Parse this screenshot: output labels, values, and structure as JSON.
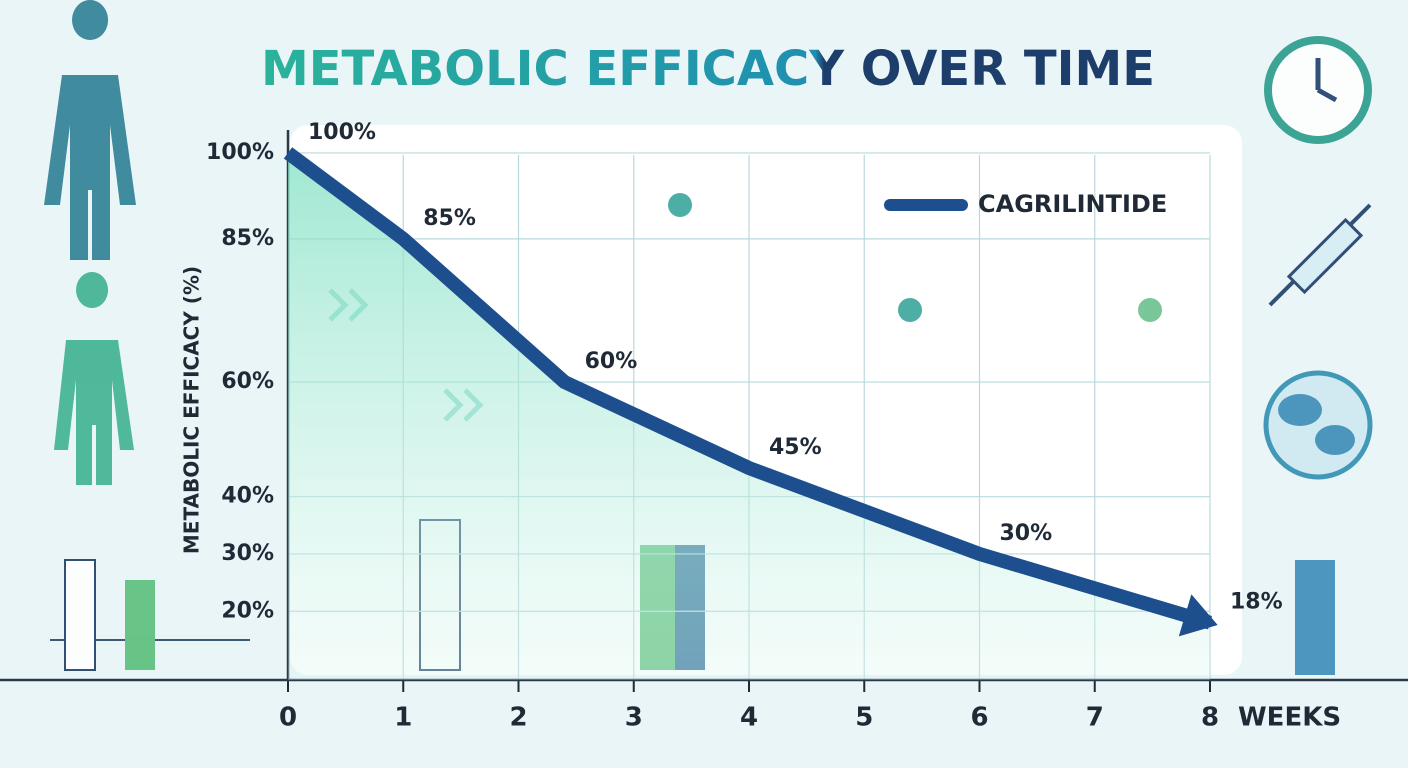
{
  "chart_data": {
    "type": "line",
    "title": "METABOLIC EFFICACY OVER TIME",
    "y_label": "METABOLIC EFFICACY (%)",
    "x_label": "WEEKS",
    "x": [
      0,
      1,
      2.4,
      4,
      6,
      8
    ],
    "series": [
      {
        "name": "CAGRILINTIDE",
        "color": "#1d4f8f",
        "values": [
          100,
          85,
          60,
          45,
          30,
          18
        ],
        "value_labels": [
          "100%",
          "85%",
          "60%",
          "45%",
          "30%",
          "18%"
        ]
      }
    ],
    "xlim": [
      0,
      8
    ],
    "xticks": [
      0,
      1,
      2,
      3,
      4,
      5,
      6,
      7,
      8
    ],
    "ylim": [
      8,
      104
    ],
    "yticks": [
      {
        "value": 20,
        "label": "20%"
      },
      {
        "value": 30,
        "label": "30%"
      },
      {
        "value": 40,
        "label": "40%"
      },
      {
        "value": 60,
        "label": "60%"
      },
      {
        "value": 85,
        "label": "85%"
      },
      {
        "value": 100,
        "label": "100%"
      }
    ],
    "grid": true,
    "legend": "upper right"
  }
}
